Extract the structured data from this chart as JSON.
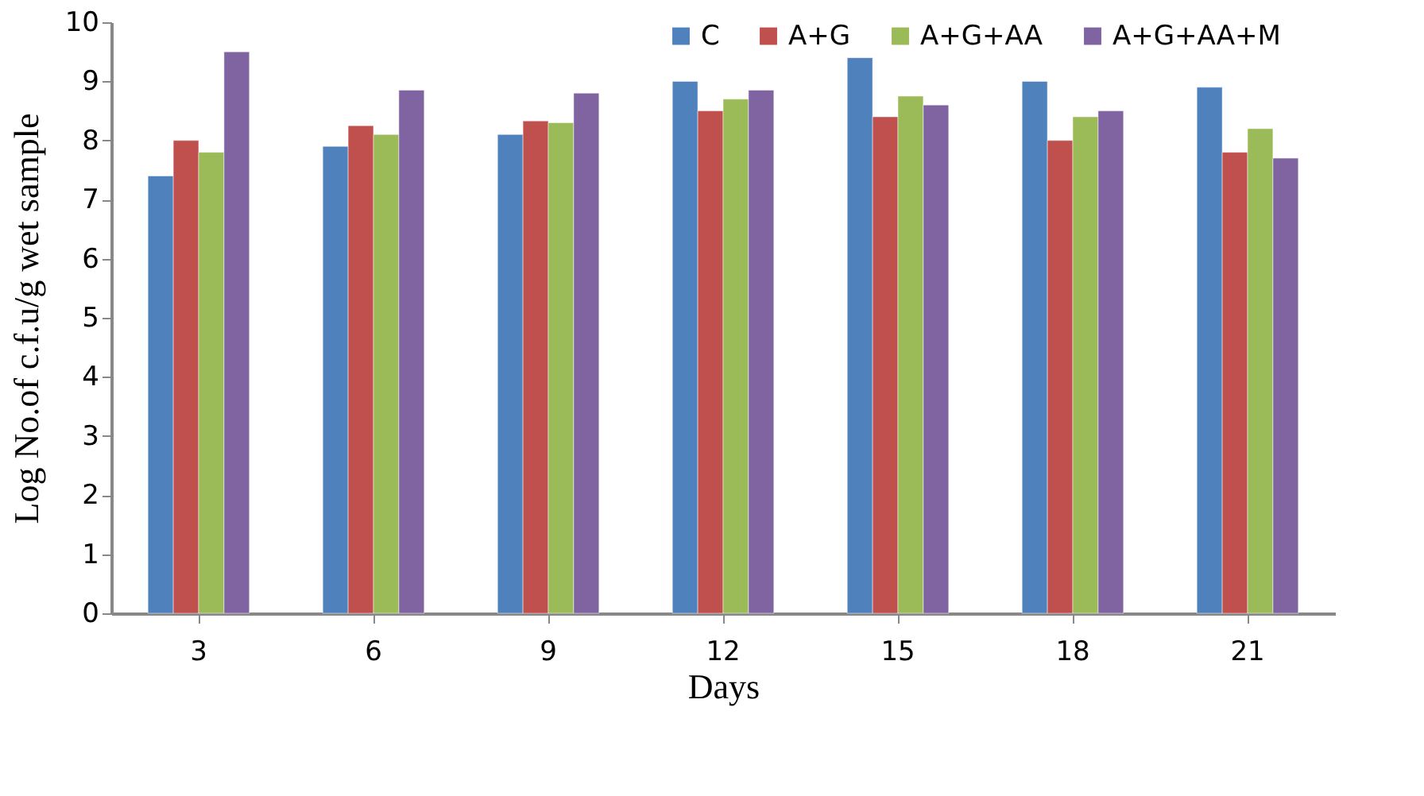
{
  "chart_data": {
    "type": "bar",
    "xlabel": "Days",
    "ylabel": "Log No.of c.f.u/g wet sample",
    "categories": [
      "3",
      "6",
      "9",
      "12",
      "15",
      "18",
      "21"
    ],
    "series": [
      {
        "name": "C",
        "color": "#4f81bd",
        "values": [
          7.4,
          7.9,
          8.1,
          9.0,
          9.4,
          9.0,
          8.9
        ]
      },
      {
        "name": "A+G",
        "color": "#c0504d",
        "values": [
          8.0,
          8.25,
          8.33,
          8.5,
          8.4,
          8.0,
          7.8
        ]
      },
      {
        "name": "A+G+AA",
        "color": "#9bbb59",
        "values": [
          7.8,
          8.1,
          8.3,
          8.7,
          8.75,
          8.4,
          8.2
        ]
      },
      {
        "name": "A+G+AA+M",
        "color": "#8064a2",
        "values": [
          9.5,
          8.85,
          8.8,
          8.85,
          8.6,
          8.5,
          7.7
        ]
      }
    ],
    "ylim": [
      0,
      10
    ],
    "yticks": [
      0,
      1,
      2,
      3,
      4,
      5,
      6,
      7,
      8,
      9,
      10
    ],
    "grid": false,
    "legend": "top right"
  }
}
